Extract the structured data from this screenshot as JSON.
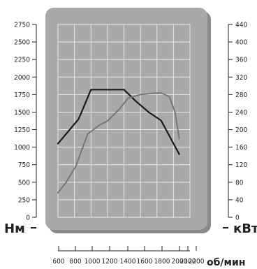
{
  "chart_data": {
    "type": "line",
    "x": [
      600,
      800,
      1000,
      1200,
      1400,
      1600,
      1800,
      2000,
      2100,
      2200
    ],
    "x_ticks": [
      "600",
      "800",
      "1000",
      "1200",
      "1400",
      "1600",
      "1800",
      "2000",
      "2100",
      "2200"
    ],
    "xlabel": "об/мин",
    "xlim": [
      600,
      2200
    ],
    "ylabel_left": "Нм",
    "ylim_left": [
      0,
      2750
    ],
    "y_ticks_left": [
      "0",
      "250",
      "500",
      "750",
      "1000",
      "1250",
      "1500",
      "1750",
      "2000",
      "2250",
      "2500",
      "2750"
    ],
    "ylabel_right": "кВт",
    "ylim_right": [
      0,
      440
    ],
    "y_ticks_right": [
      "0",
      "40",
      "80",
      "120",
      "160",
      "200",
      "240",
      "280",
      "320",
      "360",
      "400",
      "440"
    ],
    "grid": true,
    "colors": {
      "panel": "#a9a9a9",
      "grid": "#e8e8e8",
      "torque": "#1a1a1a",
      "power": "#777777"
    },
    "series": [
      {
        "key": "torque",
        "axis": "left",
        "x": [
          600,
          850,
          1000,
          1150,
          1400,
          1550,
          1700,
          1850,
          2070
        ],
        "values": [
          1050,
          1400,
          1820,
          1820,
          1820,
          1650,
          1500,
          1380,
          900
        ]
      },
      {
        "key": "power",
        "axis": "right",
        "x": [
          600,
          700,
          820,
          960,
          1100,
          1200,
          1350,
          1450,
          1600,
          1750,
          1850,
          1950,
          2020,
          2070
        ],
        "values": [
          56,
          80,
          118,
          190,
          210,
          220,
          248,
          272,
          280,
          283,
          284,
          275,
          240,
          180
        ]
      }
    ]
  }
}
